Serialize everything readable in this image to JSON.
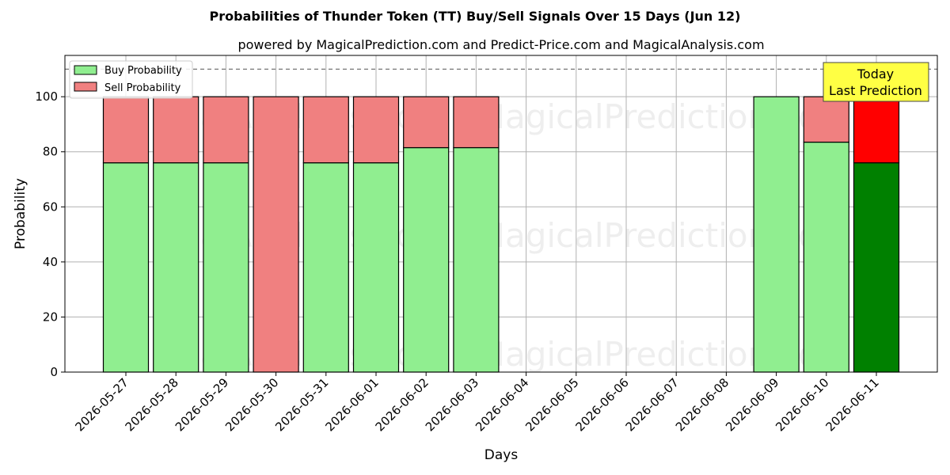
{
  "chart_data": {
    "type": "bar",
    "stacked": true,
    "title": "Probabilities of Thunder Token (TT) Buy/Sell Signals Over 15 Days (Jun 12)",
    "subtitle": "powered by MagicalPrediction.com and Predict-Price.com and MagicalAnalysis.com",
    "xlabel": "Days",
    "ylabel": "Probability",
    "ylim": [
      0,
      115
    ],
    "yticks": [
      0,
      20,
      40,
      60,
      80,
      100
    ],
    "grid": true,
    "legend_position": "top-left",
    "reference_line": 110,
    "categories": [
      "2026-05-27",
      "2026-05-28",
      "2026-05-29",
      "2026-05-30",
      "2026-05-31",
      "2026-06-01",
      "2026-06-02",
      "2026-06-03",
      "2026-06-04",
      "2026-06-05",
      "2026-06-06",
      "2026-06-07",
      "2026-06-08",
      "2026-06-09",
      "2026-06-10",
      "2026-06-11"
    ],
    "series": [
      {
        "name": "Buy Probability",
        "color": "#90ee90",
        "highlight_color": "#008000",
        "values": [
          76,
          76,
          76,
          0,
          76,
          76,
          81.5,
          81.5,
          null,
          null,
          null,
          null,
          null,
          100,
          83.5,
          76
        ]
      },
      {
        "name": "Sell Probability",
        "color": "#f08080",
        "highlight_color": "#ff0000",
        "values": [
          24,
          24,
          24,
          100,
          24,
          24,
          18.5,
          18.5,
          null,
          null,
          null,
          null,
          null,
          0,
          16.5,
          24
        ]
      }
    ],
    "highlight_index": 15,
    "annotation": {
      "line1": "Today",
      "line2": "Last Prediction",
      "color": "#ffff44"
    },
    "watermarks": [
      "MagicalAnalysis.com",
      "MagicalPrediction.com"
    ]
  }
}
